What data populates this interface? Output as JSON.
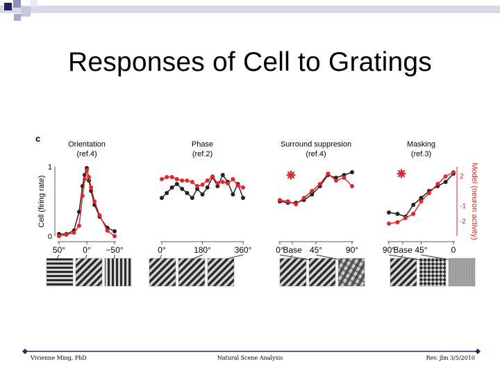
{
  "slide": {
    "title": "Responses of Cell to Gratings",
    "footer_left": "Vivienne Ming, PhD",
    "footer_center": "Natural Scene Analysis",
    "footer_right": "Rev. jlm 3/5/2010"
  },
  "colors": {
    "cell": "#222222",
    "model": "#e0252b",
    "axis": "#555555",
    "footer_line": "#1f2a6b"
  },
  "icons": [
    "red-asterisk-icon",
    "black-asterisk-icon",
    "grating-thumbnail-icon"
  ],
  "chart_data": {
    "type": "line",
    "panel_label": "c",
    "left_axis": {
      "label": "Cell (firing rate)",
      "ticks": [
        "0",
        "1"
      ]
    },
    "right_axis": {
      "label": "Model (neuron activity)",
      "ticks": [
        "-2",
        "-1",
        "2"
      ]
    },
    "panels": [
      {
        "title_line1": "Orientation",
        "title_line2": "(ref.4)",
        "x_ticks": [
          "50°",
          "0°",
          "−50°"
        ],
        "x": [
          65,
          48,
          30,
          18,
          10,
          5,
          0,
          -5,
          -10,
          -18,
          -30,
          -48,
          -65
        ],
        "series": [
          {
            "key": "cell",
            "values": [
              0.03,
              0.03,
              0.08,
              0.35,
              0.72,
              0.88,
              0.98,
              0.8,
              0.65,
              0.45,
              0.28,
              0.12,
              0.07
            ]
          },
          {
            "key": "model",
            "values": [
              0.0,
              0.02,
              0.05,
              0.15,
              0.58,
              0.82,
              0.95,
              0.85,
              0.7,
              0.5,
              0.3,
              0.08,
              0.0
            ]
          }
        ]
      },
      {
        "title_line1": "Phase",
        "title_line2": "(ref.2)",
        "x_ticks": [
          "0°",
          "180°",
          "360°"
        ],
        "x": [
          0,
          22,
          45,
          67,
          90,
          112,
          135,
          157,
          180,
          202,
          225,
          247,
          270,
          292,
          315,
          337,
          360
        ],
        "series": [
          {
            "key": "cell",
            "values": [
              0.55,
              0.62,
              0.7,
              0.75,
              0.68,
              0.62,
              0.55,
              0.68,
              0.6,
              0.7,
              0.85,
              0.72,
              0.88,
              0.78,
              0.6,
              0.75,
              0.55
            ]
          },
          {
            "key": "model",
            "values": [
              0.82,
              0.85,
              0.85,
              0.82,
              0.8,
              0.8,
              0.78,
              0.72,
              0.74,
              0.8,
              0.86,
              0.76,
              0.78,
              0.76,
              0.82,
              0.73,
              0.7
            ]
          }
        ]
      },
      {
        "title_line1": "Surround suppresion",
        "title_line2": "(ref.4)",
        "x_ticks": [
          "Base",
          "0°",
          "45°",
          "90°"
        ],
        "base": {
          "cell": 0.88,
          "model": 0.88
        },
        "x": [
          0,
          10,
          20,
          30,
          40,
          50,
          60,
          70,
          80,
          90
        ],
        "series": [
          {
            "key": "cell",
            "values": [
              0.5,
              0.48,
              0.48,
              0.52,
              0.6,
              0.72,
              0.88,
              0.84,
              0.88,
              0.92
            ]
          },
          {
            "key": "model",
            "values": [
              0.52,
              0.5,
              0.46,
              0.55,
              0.65,
              0.75,
              0.9,
              0.8,
              0.84,
              0.72
            ]
          }
        ]
      },
      {
        "title_line1": "Masking",
        "title_line2": "(ref.3)",
        "x_ticks": [
          "Base",
          "90°",
          "45°",
          "0"
        ],
        "base": {
          "cell": 0.9,
          "model": 0.9
        },
        "x": [
          90,
          78,
          67,
          56,
          45,
          34,
          22,
          11,
          0
        ],
        "series": [
          {
            "key": "cell",
            "values": [
              0.34,
              0.32,
              0.28,
              0.45,
              0.55,
              0.65,
              0.72,
              0.78,
              0.9
            ]
          },
          {
            "key": "model",
            "values": [
              0.18,
              0.2,
              0.26,
              0.32,
              0.5,
              0.62,
              0.75,
              0.86,
              0.92
            ]
          }
        ]
      }
    ]
  },
  "thumbnails": [
    [
      "horizontal",
      "diagonal",
      "vertical"
    ],
    [
      "diagonal",
      "diagonal",
      "diagonal"
    ],
    [
      "diagonal",
      "diagonal",
      "plaid"
    ],
    [
      "diagonal",
      "checker",
      "plain"
    ]
  ]
}
